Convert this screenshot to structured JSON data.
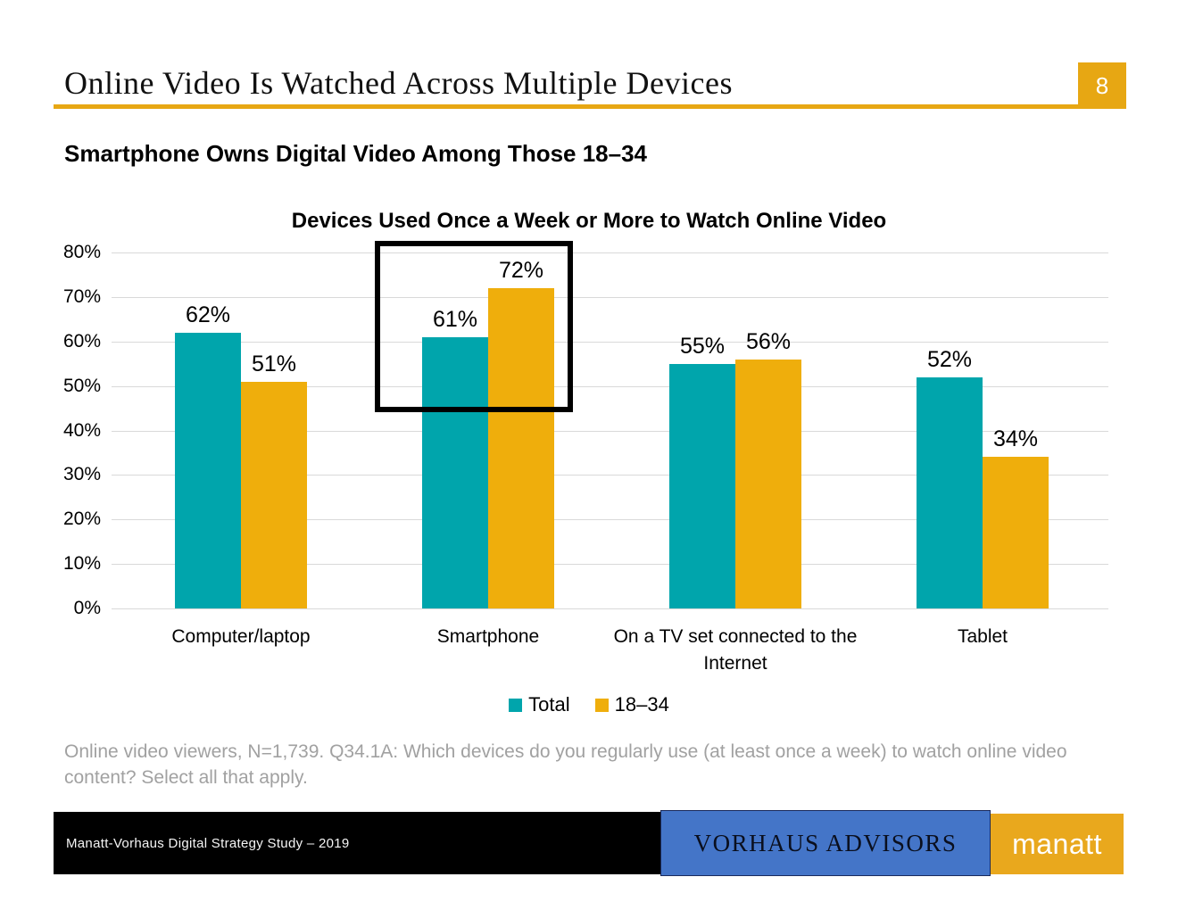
{
  "slide": {
    "title": "Online Video Is Watched Across Multiple Devices",
    "page_number": "8",
    "subtitle": "Smartphone Owns Digital Video Among Those 18–34",
    "footnote": "Online video viewers, N=1,739. Q34.1A: Which devices do you regularly use (at least once a week) to watch online video content? Select all that apply."
  },
  "chart_data": {
    "type": "bar",
    "title": "Devices Used Once a Week or More to Watch Online Video",
    "categories": [
      "Computer/laptop",
      "Smartphone",
      "On a TV set connected to the Internet",
      "Tablet"
    ],
    "series": [
      {
        "name": "Total",
        "color": "#00A5AC",
        "values": [
          62,
          61,
          55,
          52
        ]
      },
      {
        "name": "18–34",
        "color": "#EFAE0C",
        "values": [
          51,
          72,
          56,
          34
        ]
      }
    ],
    "value_suffix": "%",
    "xlabel": "",
    "ylabel": "",
    "ylim": [
      0,
      80
    ],
    "ytick_step": 10,
    "ytick_labels": [
      "0%",
      "10%",
      "20%",
      "30%",
      "40%",
      "50%",
      "60%",
      "70%",
      "80%"
    ],
    "grid": true,
    "legend_position": "bottom",
    "annotation": "Black rectangle outlines the Smartphone group (61% / 72%)"
  },
  "footer": {
    "study_label": "Manatt-Vorhaus Digital Strategy Study – 2019",
    "advisors_logo": "VORHAUS ADVISORS",
    "manatt_logo": "manatt"
  },
  "colors": {
    "accent_gold": "#E7A713",
    "bar_teal": "#00A5AC",
    "bar_gold": "#EFAE0C",
    "footer_blue": "#4475C8",
    "footer_black": "#000000",
    "gridline": "#D9D9D9",
    "footnote_gray": "#A1A1A1",
    "page_number_text": "#FFFFFF"
  }
}
